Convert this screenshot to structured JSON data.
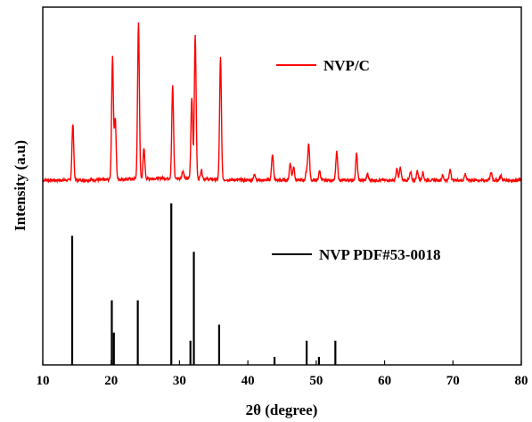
{
  "chart_data": {
    "type": "line",
    "xlabel": "2θ (degree)",
    "ylabel": "Intensity (a.u)",
    "xlim": [
      10,
      80
    ],
    "xticks": [
      10,
      20,
      30,
      40,
      50,
      60,
      70,
      80
    ],
    "grid": false,
    "legend_placement": "right",
    "series": [
      {
        "name": "NVP/C",
        "kind": "pattern",
        "color": "#ff0000",
        "baseline": 0.0,
        "peaks": [
          {
            "x": 14.4,
            "y": 0.36
          },
          {
            "x": 20.2,
            "y": 0.78
          },
          {
            "x": 20.6,
            "y": 0.39
          },
          {
            "x": 24.0,
            "y": 1.0
          },
          {
            "x": 24.8,
            "y": 0.19
          },
          {
            "x": 29.0,
            "y": 0.59
          },
          {
            "x": 30.5,
            "y": 0.05
          },
          {
            "x": 31.8,
            "y": 0.52
          },
          {
            "x": 32.3,
            "y": 0.92
          },
          {
            "x": 33.2,
            "y": 0.06
          },
          {
            "x": 36.0,
            "y": 0.78
          },
          {
            "x": 41.0,
            "y": 0.04
          },
          {
            "x": 43.6,
            "y": 0.17
          },
          {
            "x": 46.2,
            "y": 0.11
          },
          {
            "x": 46.7,
            "y": 0.09
          },
          {
            "x": 48.6,
            "y": 0.06
          },
          {
            "x": 48.9,
            "y": 0.23
          },
          {
            "x": 50.5,
            "y": 0.06
          },
          {
            "x": 53.0,
            "y": 0.18
          },
          {
            "x": 55.9,
            "y": 0.17
          },
          {
            "x": 57.5,
            "y": 0.04
          },
          {
            "x": 61.8,
            "y": 0.07
          },
          {
            "x": 62.3,
            "y": 0.08
          },
          {
            "x": 63.8,
            "y": 0.05
          },
          {
            "x": 64.8,
            "y": 0.06
          },
          {
            "x": 65.6,
            "y": 0.05
          },
          {
            "x": 68.5,
            "y": 0.03
          },
          {
            "x": 69.6,
            "y": 0.07
          },
          {
            "x": 71.8,
            "y": 0.04
          },
          {
            "x": 75.6,
            "y": 0.05
          },
          {
            "x": 77.0,
            "y": 0.03
          }
        ]
      },
      {
        "name": "NVP PDF#53-0018",
        "kind": "stick",
        "color": "#000000",
        "peaks": [
          {
            "x": 14.3,
            "y": 0.8
          },
          {
            "x": 20.1,
            "y": 0.4
          },
          {
            "x": 20.4,
            "y": 0.2
          },
          {
            "x": 23.9,
            "y": 0.4
          },
          {
            "x": 28.8,
            "y": 1.0
          },
          {
            "x": 31.6,
            "y": 0.15
          },
          {
            "x": 32.1,
            "y": 0.7
          },
          {
            "x": 35.8,
            "y": 0.25
          },
          {
            "x": 43.9,
            "y": 0.05
          },
          {
            "x": 48.6,
            "y": 0.15
          },
          {
            "x": 50.4,
            "y": 0.05
          },
          {
            "x": 52.8,
            "y": 0.15
          }
        ]
      }
    ]
  }
}
